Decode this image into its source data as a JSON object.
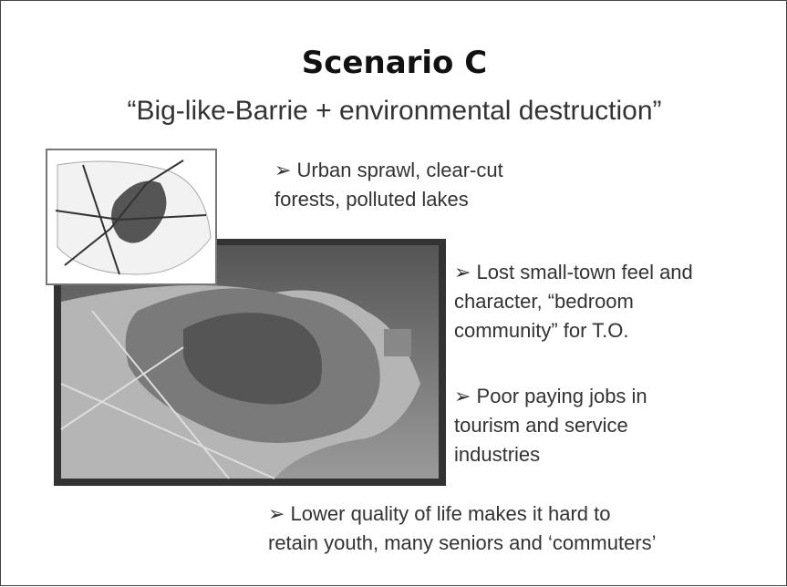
{
  "title": "Scenario C",
  "subtitle": "“Big-like-Barrie + environmental destruction”",
  "bullets": [
    {
      "lines": [
        "➢ Urban sprawl, clear-cut",
        "forests, polluted lakes"
      ]
    },
    {
      "lines": [
        "➢ Lost small-town feel and",
        "character, “bedroom",
        "community” for T.O."
      ]
    },
    {
      "lines": [
        "➢ Poor paying jobs in",
        "tourism and service",
        "industries"
      ]
    },
    {
      "lines": [
        "➢ Lower quality of life makes it hard to",
        "retain youth, many seniors and ‘commuters’"
      ]
    }
  ]
}
